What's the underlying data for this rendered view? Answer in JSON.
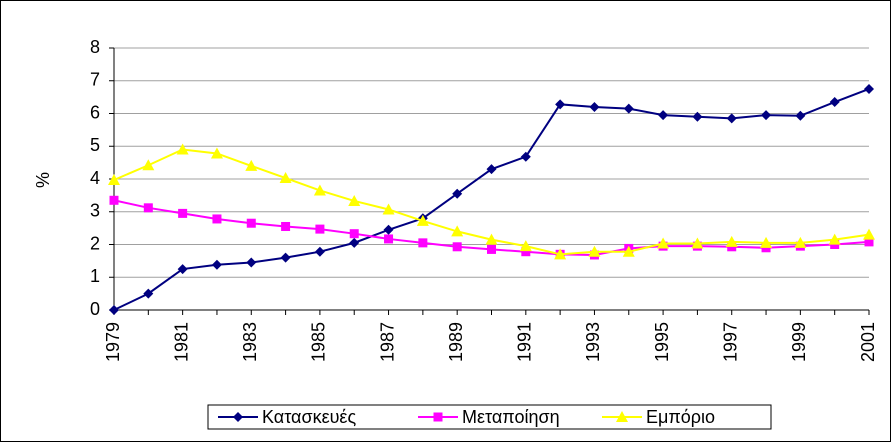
{
  "chart_data": {
    "type": "line",
    "y_label": "%",
    "categories": [
      "1979",
      null,
      "1981",
      null,
      "1983",
      null,
      "1985",
      null,
      "1987",
      null,
      "1989",
      null,
      "1991",
      null,
      "1993",
      null,
      "1995",
      null,
      "1997",
      null,
      "1999",
      null,
      "2001"
    ],
    "series": [
      {
        "name": "Κατασκευές",
        "color": "#000080",
        "marker": "diamond",
        "values": [
          0,
          0.5,
          1.25,
          1.38,
          1.45,
          1.6,
          1.78,
          2.05,
          2.45,
          2.8,
          3.55,
          4.3,
          4.68,
          6.28,
          6.2,
          6.15,
          5.95,
          5.9,
          5.85,
          5.95,
          5.93,
          6.35,
          6.75
        ]
      },
      {
        "name": "Μεταποίηση",
        "color": "#ff00ff",
        "marker": "square",
        "values": [
          3.35,
          3.12,
          2.95,
          2.78,
          2.65,
          2.55,
          2.47,
          2.33,
          2.17,
          2.05,
          1.93,
          1.85,
          1.78,
          1.7,
          1.68,
          1.88,
          1.95,
          1.95,
          1.93,
          1.9,
          1.95,
          2.0,
          2.08
        ]
      },
      {
        "name": "Εμπόριο",
        "color": "#ffff00",
        "marker": "triangle",
        "values": [
          3.97,
          4.42,
          4.9,
          4.78,
          4.4,
          4.03,
          3.65,
          3.33,
          3.07,
          2.72,
          2.4,
          2.15,
          1.95,
          1.7,
          1.78,
          1.78,
          2.03,
          2.03,
          2.08,
          2.05,
          2.05,
          2.15,
          2.3
        ]
      }
    ],
    "ylim": [
      0,
      8
    ],
    "yticks": [
      0,
      1,
      2,
      3,
      4,
      5,
      6,
      7,
      8
    ],
    "grid": true,
    "legend": "bottom"
  }
}
